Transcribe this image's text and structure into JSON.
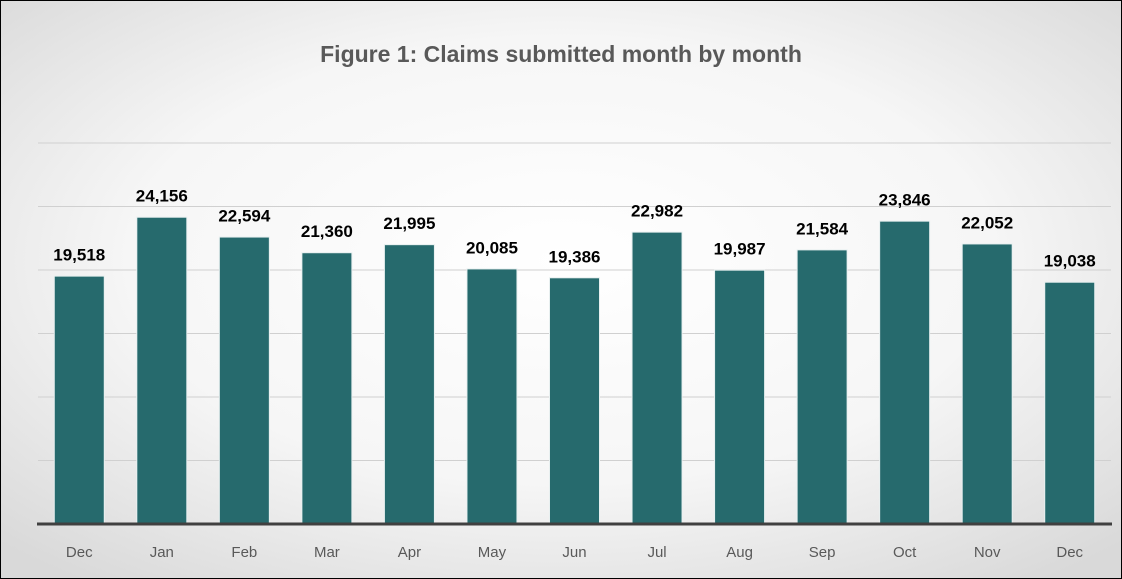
{
  "chart_data": {
    "type": "bar",
    "title": "Figure 1: Claims submitted month by month",
    "categories": [
      "Dec",
      "Jan",
      "Feb",
      "Mar",
      "Apr",
      "May",
      "Jun",
      "Jul",
      "Aug",
      "Sep",
      "Oct",
      "Nov",
      "Dec"
    ],
    "values": [
      19518,
      24156,
      22594,
      21360,
      21995,
      20085,
      19386,
      22982,
      19987,
      21584,
      23846,
      22052,
      19038
    ],
    "value_labels": [
      "19,518",
      "24,156",
      "22,594",
      "21,360",
      "21,995",
      "20,085",
      "19,386",
      "22,982",
      "19,987",
      "21,584",
      "23,846",
      "22,052",
      "19,038"
    ],
    "color": "#266a6d",
    "ylim": [
      0,
      30000
    ],
    "yticks": [
      0,
      5000,
      10000,
      15000,
      20000,
      25000,
      30000
    ],
    "grid": true
  }
}
